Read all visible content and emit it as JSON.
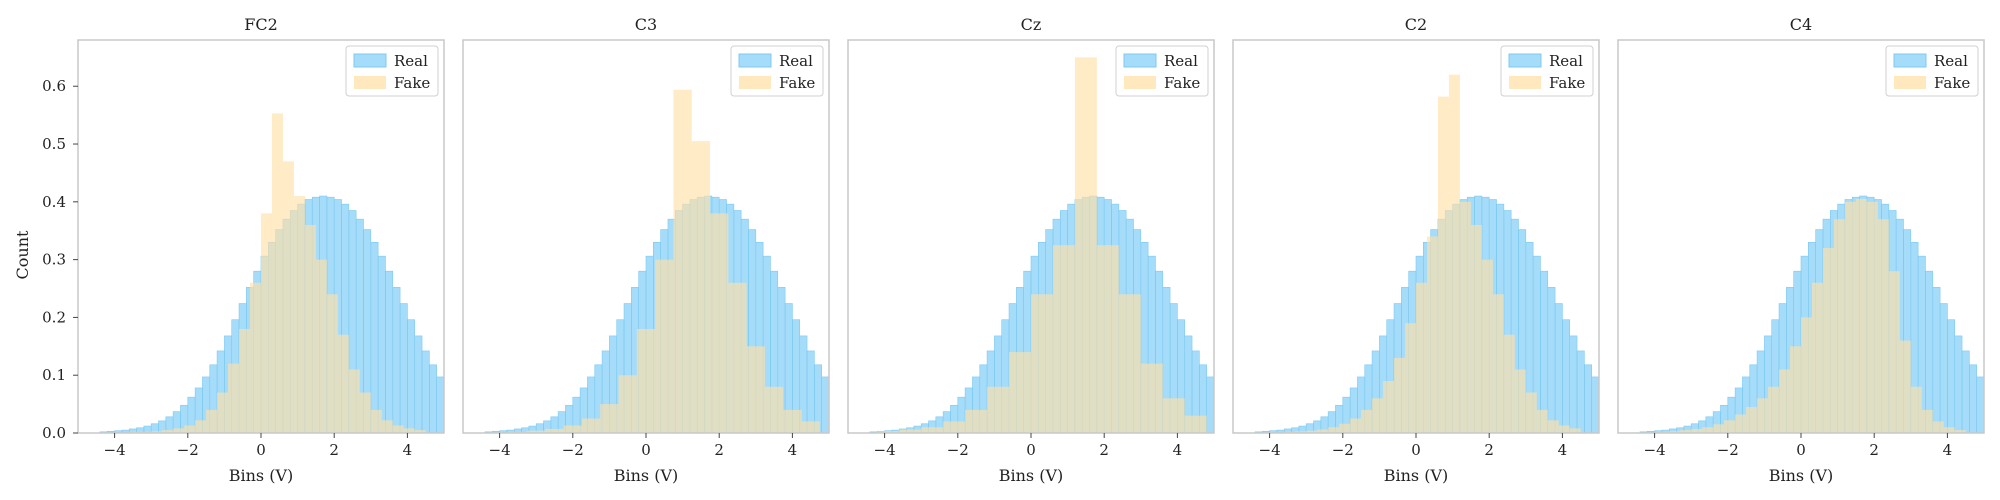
{
  "figure": {
    "ylabel": "Count",
    "xlabel": "Bins (V)",
    "legend": {
      "real": "Real",
      "fake": "Fake",
      "placement": "top-right"
    },
    "colors": {
      "real": "#5bc0f5",
      "fake": "#ffe0a8",
      "overlap": "#e6ddc0"
    }
  },
  "chart_data": [
    {
      "type": "histogram",
      "title": "FC2",
      "xlim": [
        -5,
        5
      ],
      "ylim": [
        0,
        0.68
      ],
      "xticks": [
        -4,
        -2,
        0,
        2,
        4
      ],
      "yticks": [
        0.0,
        0.1,
        0.2,
        0.3,
        0.4,
        0.5,
        0.6
      ],
      "series": [
        {
          "name": "Real",
          "bin_width": 0.2,
          "edges_start": -4.4,
          "values": [
            0.002,
            0.003,
            0.004,
            0.005,
            0.007,
            0.009,
            0.012,
            0.016,
            0.021,
            0.028,
            0.037,
            0.048,
            0.062,
            0.078,
            0.097,
            0.118,
            0.142,
            0.168,
            0.196,
            0.224,
            0.252,
            0.28,
            0.306,
            0.33,
            0.352,
            0.37,
            0.385,
            0.396,
            0.404,
            0.408,
            0.41,
            0.408,
            0.404,
            0.396,
            0.385,
            0.37,
            0.352,
            0.33,
            0.306,
            0.28,
            0.252,
            0.224,
            0.196,
            0.168,
            0.142,
            0.118,
            0.097,
            0.078,
            0.062,
            0.048,
            0.037,
            0.028,
            0.021,
            0.016,
            0.012,
            0.009,
            0.007,
            0.005,
            0.004,
            0.003
          ]
        },
        {
          "name": "Fake",
          "bin_width": 0.3,
          "edges_start": -4.2,
          "values": [
            0.001,
            0.001,
            0.002,
            0.002,
            0.003,
            0.005,
            0.008,
            0.013,
            0.022,
            0.04,
            0.07,
            0.12,
            0.18,
            0.26,
            0.38,
            0.553,
            0.47,
            0.41,
            0.36,
            0.3,
            0.24,
            0.17,
            0.11,
            0.07,
            0.04,
            0.022,
            0.013,
            0.008,
            0.005
          ]
        }
      ]
    },
    {
      "type": "histogram",
      "title": "C3",
      "xlim": [
        -5,
        5
      ],
      "ylim": [
        0,
        0.68
      ],
      "xticks": [
        -4,
        -2,
        0,
        2,
        4
      ],
      "yticks": [],
      "series": [
        {
          "name": "Real",
          "bin_width": 0.2,
          "edges_start": -4.4,
          "values": [
            0.002,
            0.003,
            0.004,
            0.005,
            0.007,
            0.009,
            0.012,
            0.016,
            0.021,
            0.028,
            0.037,
            0.048,
            0.062,
            0.078,
            0.097,
            0.118,
            0.142,
            0.168,
            0.196,
            0.224,
            0.252,
            0.28,
            0.306,
            0.33,
            0.352,
            0.37,
            0.385,
            0.396,
            0.404,
            0.408,
            0.41,
            0.408,
            0.404,
            0.396,
            0.385,
            0.37,
            0.352,
            0.33,
            0.306,
            0.28,
            0.252,
            0.224,
            0.196,
            0.168,
            0.142,
            0.118,
            0.097,
            0.078,
            0.062,
            0.048,
            0.037,
            0.028,
            0.021,
            0.016,
            0.012,
            0.009,
            0.007,
            0.005,
            0.004,
            0.003
          ]
        },
        {
          "name": "Fake",
          "bin_width": 0.5,
          "edges_start": -4.25,
          "values": [
            0.001,
            0.002,
            0.004,
            0.007,
            0.013,
            0.025,
            0.05,
            0.1,
            0.18,
            0.3,
            0.594,
            0.505,
            0.38,
            0.26,
            0.15,
            0.08,
            0.04,
            0.02
          ]
        }
      ]
    },
    {
      "type": "histogram",
      "title": "Cz",
      "xlim": [
        -5,
        5
      ],
      "ylim": [
        0,
        0.68
      ],
      "xticks": [
        -4,
        -2,
        0,
        2,
        4
      ],
      "yticks": [],
      "series": [
        {
          "name": "Real",
          "bin_width": 0.2,
          "edges_start": -4.4,
          "values": [
            0.002,
            0.003,
            0.004,
            0.005,
            0.007,
            0.009,
            0.012,
            0.016,
            0.021,
            0.028,
            0.037,
            0.048,
            0.062,
            0.078,
            0.097,
            0.118,
            0.142,
            0.168,
            0.196,
            0.224,
            0.252,
            0.28,
            0.306,
            0.33,
            0.352,
            0.37,
            0.385,
            0.396,
            0.404,
            0.408,
            0.41,
            0.408,
            0.404,
            0.396,
            0.385,
            0.37,
            0.352,
            0.33,
            0.306,
            0.28,
            0.252,
            0.224,
            0.196,
            0.168,
            0.142,
            0.118,
            0.097,
            0.078,
            0.062,
            0.048,
            0.037,
            0.028,
            0.021,
            0.016,
            0.012,
            0.009,
            0.007,
            0.005,
            0.004,
            0.003
          ]
        },
        {
          "name": "Fake",
          "bin_width": 0.6,
          "edges_start": -4.2,
          "values": [
            0.003,
            0.006,
            0.01,
            0.02,
            0.04,
            0.08,
            0.14,
            0.24,
            0.325,
            0.65,
            0.325,
            0.24,
            0.12,
            0.06,
            0.03
          ]
        }
      ]
    },
    {
      "type": "histogram",
      "title": "C2",
      "xlim": [
        -5,
        5
      ],
      "ylim": [
        0,
        0.68
      ],
      "xticks": [
        -4,
        -2,
        0,
        2,
        4
      ],
      "yticks": [],
      "series": [
        {
          "name": "Real",
          "bin_width": 0.2,
          "edges_start": -4.4,
          "values": [
            0.002,
            0.003,
            0.004,
            0.005,
            0.007,
            0.009,
            0.012,
            0.016,
            0.021,
            0.028,
            0.037,
            0.048,
            0.062,
            0.078,
            0.097,
            0.118,
            0.142,
            0.168,
            0.196,
            0.224,
            0.252,
            0.28,
            0.306,
            0.33,
            0.352,
            0.37,
            0.385,
            0.396,
            0.404,
            0.408,
            0.41,
            0.408,
            0.404,
            0.396,
            0.385,
            0.37,
            0.352,
            0.33,
            0.306,
            0.28,
            0.252,
            0.224,
            0.196,
            0.168,
            0.142,
            0.118,
            0.097,
            0.078,
            0.062,
            0.048,
            0.037,
            0.028,
            0.021,
            0.016,
            0.012,
            0.009,
            0.007,
            0.005,
            0.004,
            0.003
          ]
        },
        {
          "name": "Fake",
          "bin_width": 0.3,
          "edges_start": -4.2,
          "values": [
            0.001,
            0.001,
            0.002,
            0.003,
            0.004,
            0.006,
            0.01,
            0.016,
            0.025,
            0.04,
            0.06,
            0.09,
            0.13,
            0.19,
            0.26,
            0.34,
            0.582,
            0.62,
            0.4,
            0.36,
            0.3,
            0.24,
            0.17,
            0.11,
            0.07,
            0.04,
            0.022,
            0.013,
            0.008
          ]
        }
      ]
    },
    {
      "type": "histogram",
      "title": "C4",
      "xlim": [
        -5,
        5
      ],
      "ylim": [
        0,
        0.68
      ],
      "xticks": [
        -4,
        -2,
        0,
        2,
        4
      ],
      "yticks": [],
      "series": [
        {
          "name": "Real",
          "bin_width": 0.2,
          "edges_start": -4.4,
          "values": [
            0.002,
            0.003,
            0.004,
            0.005,
            0.007,
            0.009,
            0.012,
            0.016,
            0.021,
            0.028,
            0.037,
            0.048,
            0.062,
            0.078,
            0.097,
            0.118,
            0.142,
            0.168,
            0.196,
            0.224,
            0.252,
            0.28,
            0.306,
            0.33,
            0.352,
            0.37,
            0.385,
            0.396,
            0.404,
            0.408,
            0.41,
            0.408,
            0.404,
            0.396,
            0.385,
            0.37,
            0.352,
            0.33,
            0.306,
            0.28,
            0.252,
            0.224,
            0.196,
            0.168,
            0.142,
            0.118,
            0.097,
            0.078,
            0.062,
            0.048,
            0.037,
            0.028,
            0.021,
            0.016,
            0.012,
            0.009,
            0.007,
            0.005,
            0.004,
            0.003
          ]
        },
        {
          "name": "Fake",
          "bin_width": 0.3,
          "edges_start": -4.2,
          "values": [
            0.001,
            0.002,
            0.003,
            0.005,
            0.007,
            0.01,
            0.015,
            0.022,
            0.032,
            0.045,
            0.06,
            0.08,
            0.11,
            0.15,
            0.2,
            0.26,
            0.32,
            0.37,
            0.4,
            0.405,
            0.4,
            0.37,
            0.28,
            0.16,
            0.08,
            0.04,
            0.02,
            0.01,
            0.005
          ]
        }
      ]
    }
  ]
}
